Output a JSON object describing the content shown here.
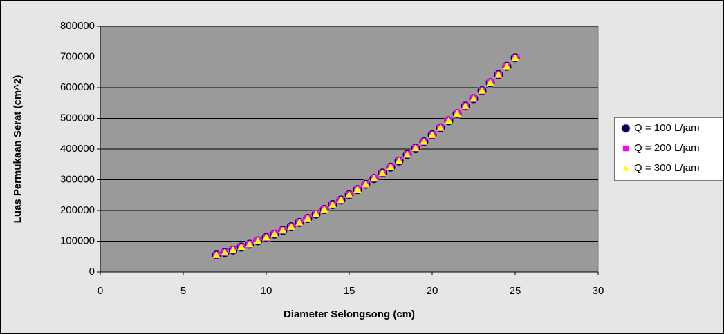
{
  "chart_data": {
    "type": "scatter",
    "xlabel": "Diameter Selongsong (cm)",
    "ylabel": "Luas Permukaan Serat (cm^2)",
    "x": [
      7,
      7.5,
      8,
      8.5,
      9,
      9.5,
      10,
      10.5,
      11,
      11.5,
      12,
      12.5,
      13,
      13.5,
      14,
      14.5,
      15,
      15.5,
      16,
      16.5,
      17,
      17.5,
      18,
      18.5,
      19,
      19.5,
      20,
      20.5,
      21,
      21.5,
      22,
      22.5,
      23,
      23.5,
      24,
      24.5,
      25
    ],
    "series": [
      {
        "name": "Q = 100 L/jam",
        "color": "#000066",
        "marker": "circle",
        "values": [
          55000,
          63000,
          71000,
          81000,
          90000,
          101000,
          112000,
          123000,
          135000,
          147000,
          161000,
          174000,
          188000,
          203000,
          219000,
          234000,
          251000,
          268000,
          285000,
          304000,
          322000,
          341000,
          361000,
          382000,
          403000,
          424000,
          446000,
          469000,
          492000,
          515000,
          540000,
          564000,
          590000,
          616000,
          642000,
          669000,
          697000
        ]
      },
      {
        "name": "Q = 200 L/jam",
        "color": "#ff00ff",
        "marker": "square",
        "values": [
          55000,
          63000,
          71000,
          81000,
          90000,
          101000,
          112000,
          123000,
          135000,
          147000,
          161000,
          174000,
          188000,
          203000,
          219000,
          234000,
          251000,
          268000,
          285000,
          304000,
          322000,
          341000,
          361000,
          382000,
          403000,
          424000,
          446000,
          469000,
          492000,
          515000,
          540000,
          564000,
          590000,
          616000,
          642000,
          669000,
          697000
        ]
      },
      {
        "name": "Q = 300 L/jam",
        "color": "#ffff00",
        "marker": "triangle",
        "values": [
          55000,
          63000,
          71000,
          81000,
          90000,
          101000,
          112000,
          123000,
          135000,
          147000,
          161000,
          174000,
          188000,
          203000,
          219000,
          234000,
          251000,
          268000,
          285000,
          304000,
          322000,
          341000,
          361000,
          382000,
          403000,
          424000,
          446000,
          469000,
          492000,
          515000,
          540000,
          564000,
          590000,
          616000,
          642000,
          669000,
          697000
        ]
      }
    ],
    "xlim": [
      0,
      30
    ],
    "xticks": [
      0,
      5,
      10,
      15,
      20,
      25,
      30
    ],
    "ylim": [
      0,
      800000
    ],
    "yticks": [
      0,
      100000,
      200000,
      300000,
      400000,
      500000,
      600000,
      700000,
      800000
    ],
    "grid": true,
    "legend": "right"
  }
}
